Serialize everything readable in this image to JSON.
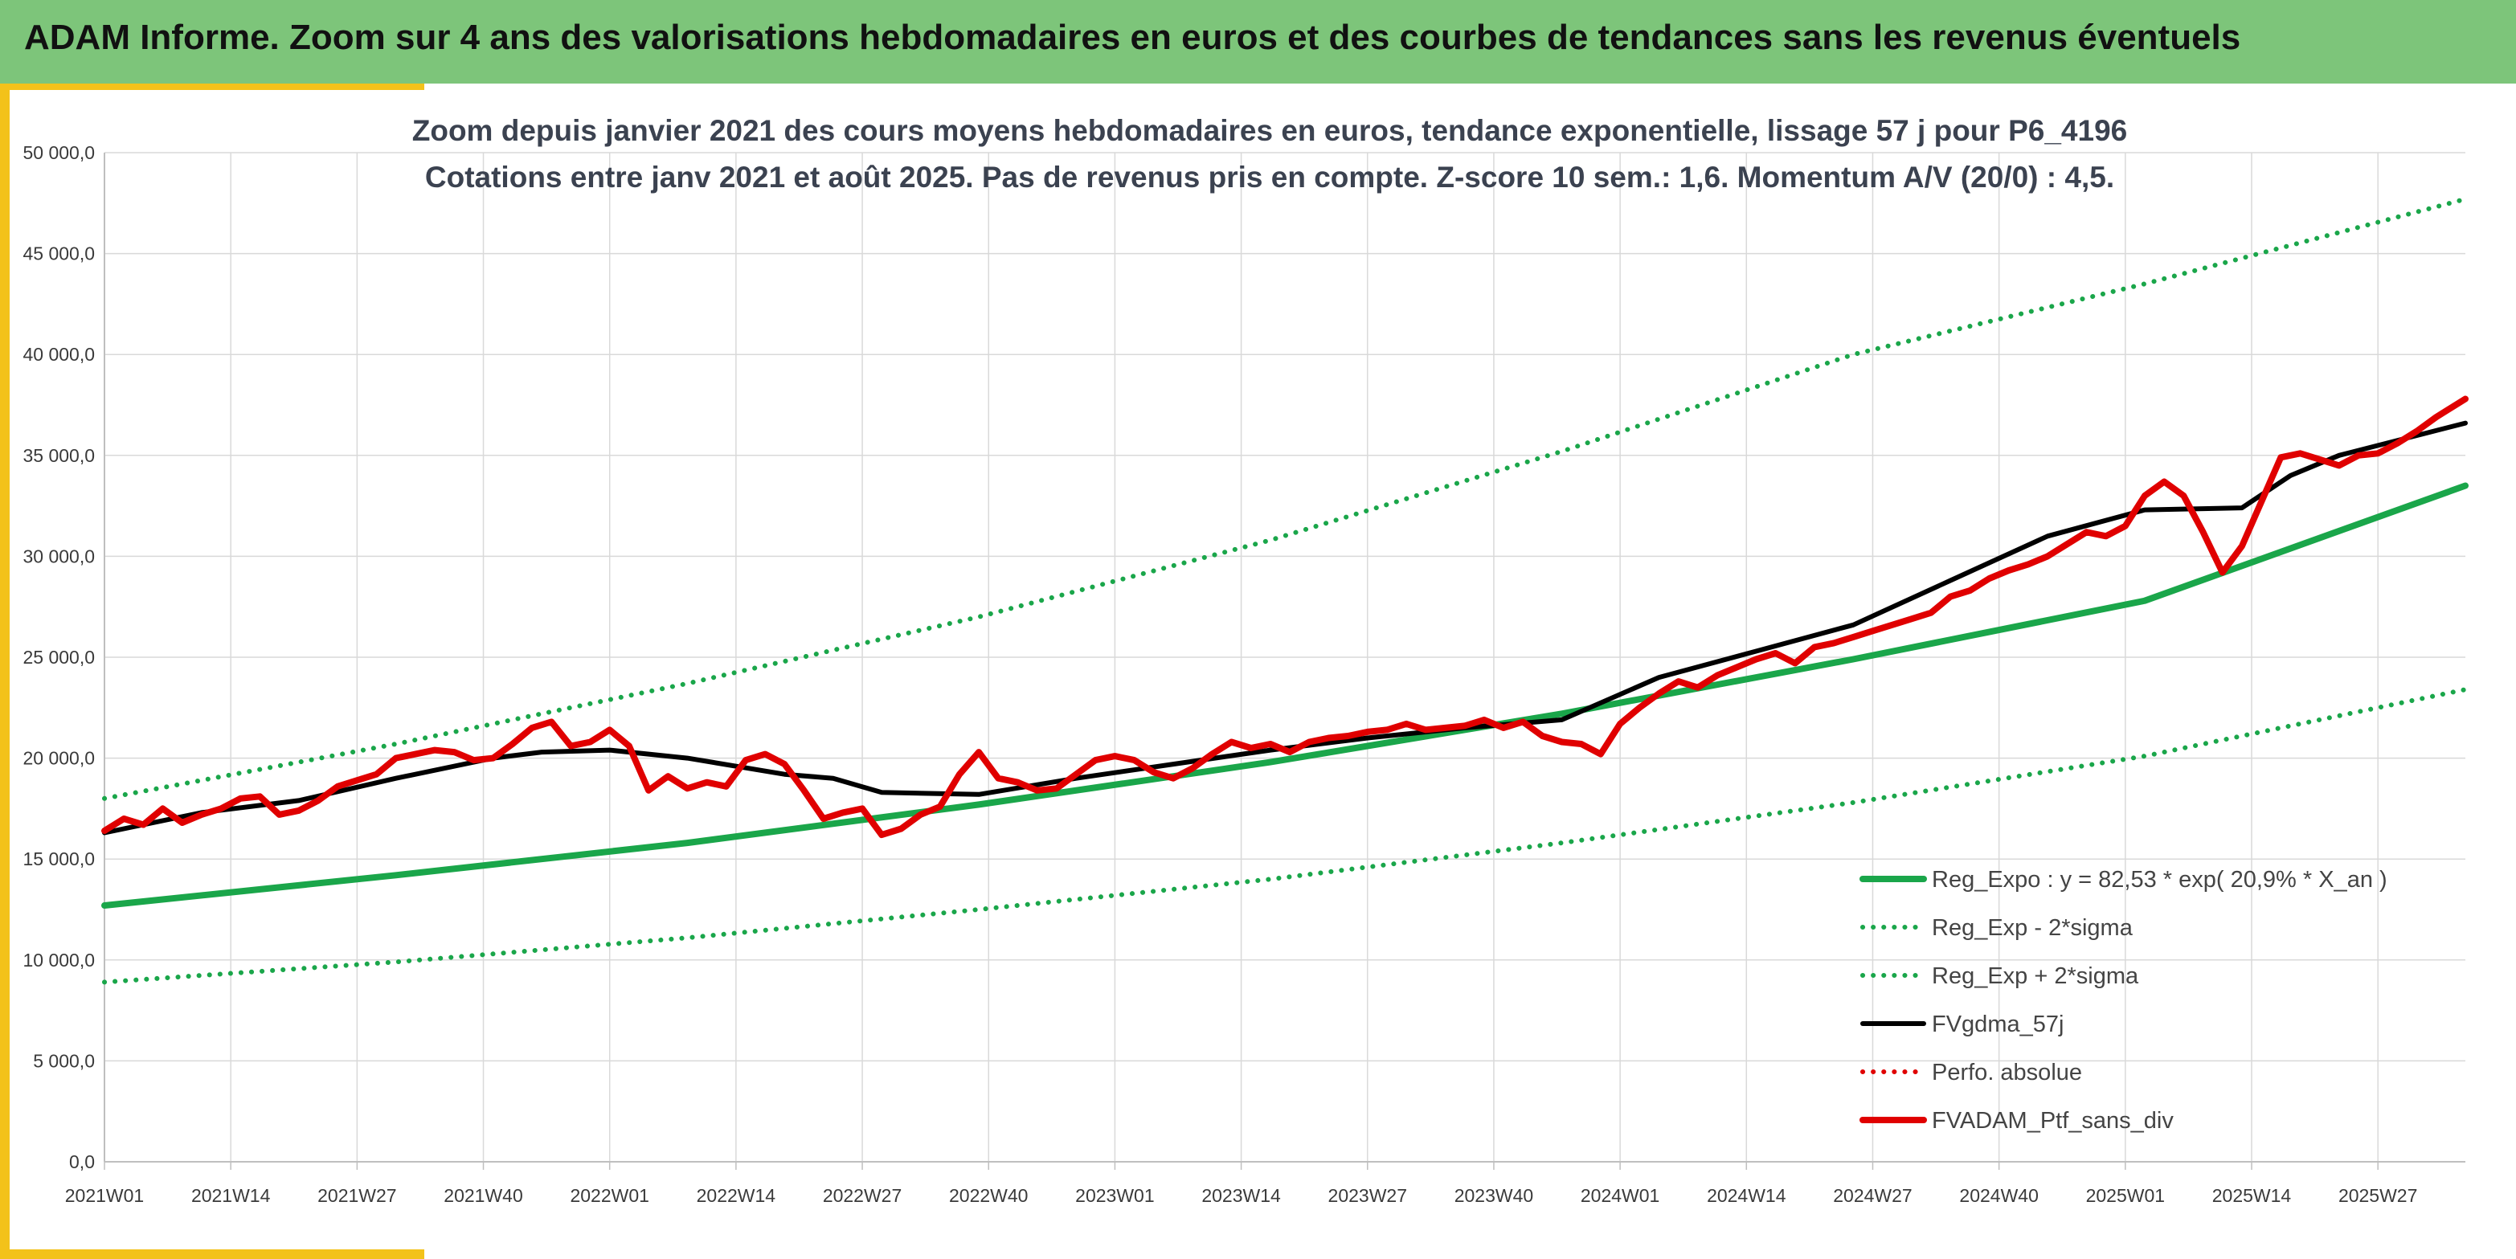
{
  "header": {
    "title": "ADAM Informe. Zoom sur 4 ans des valorisations hebdomadaires en euros et des courbes de tendances sans les revenus éventuels"
  },
  "colors": {
    "header_bg": "#7dc57a",
    "accent": "#f3c21a",
    "reg_expo": "#1aa64a",
    "sigma": "#1aa64a",
    "fvgdma": "#000000",
    "perfo": "#e00000",
    "fvadam": "#e00000",
    "grid": "#d9d9d9"
  },
  "chart_data": {
    "type": "line",
    "title_lines": [
      "Zoom depuis janvier 2021 des cours moyens hebdomadaires en euros, tendance exponentielle, lissage 57 j pour P6_4196",
      "Cotations entre janv 2021 et août 2025. Pas de revenus pris en compte. Z-score 10 sem.: 1,6. Momentum A/V (20/0) : 4,5."
    ],
    "xlabel": "",
    "ylabel": "",
    "x_tick_labels": [
      "2021W01",
      "2021W14",
      "2021W27",
      "2021W40",
      "2022W01",
      "2022W14",
      "2022W27",
      "2022W40",
      "2023W01",
      "2023W14",
      "2023W27",
      "2023W40",
      "2024W01",
      "2024W14",
      "2024W27",
      "2024W40",
      "2025W01",
      "2025W14",
      "2025W27"
    ],
    "y_tick_labels": [
      "0,0",
      "5 000,0",
      "10 000,0",
      "15 000,0",
      "20 000,0",
      "25 000,0",
      "30 000,0",
      "35 000,0",
      "40 000,0",
      "45 000,0",
      "50 000,0"
    ],
    "ylim": [
      0,
      50000
    ],
    "x_range_weeks": [
      0,
      243
    ],
    "grid": true,
    "legend_position": "bottom-right",
    "series": [
      {
        "name": "Reg_Expo : y = 82,53 * exp( 20,9% *  X_an )",
        "style": "solid-thick",
        "color": "#1aa64a",
        "x": [
          0,
          30,
          60,
          90,
          120,
          150,
          180,
          210,
          243
        ],
        "values": [
          12700,
          14200,
          15800,
          17700,
          19800,
          22200,
          24900,
          27800,
          33500
        ]
      },
      {
        "name": "Reg_Exp - 2*sigma",
        "style": "dotted",
        "color": "#1aa64a",
        "x": [
          0,
          30,
          60,
          90,
          120,
          150,
          180,
          210,
          243
        ],
        "values": [
          8900,
          9900,
          11100,
          12500,
          14000,
          15800,
          17800,
          20100,
          23400
        ]
      },
      {
        "name": "Reg_Exp + 2*sigma",
        "style": "dotted",
        "color": "#1aa64a",
        "x": [
          0,
          30,
          60,
          90,
          120,
          150,
          180,
          210,
          243
        ],
        "values": [
          18000,
          20700,
          23700,
          27000,
          30800,
          35200,
          40000,
          43500,
          47700
        ]
      },
      {
        "name": "FVgdma_57j",
        "style": "solid",
        "color": "#000000",
        "x": [
          0,
          10,
          20,
          30,
          40,
          45,
          52,
          60,
          70,
          75,
          80,
          90,
          100,
          110,
          120,
          130,
          140,
          150,
          160,
          170,
          180,
          190,
          200,
          210,
          220,
          225,
          230,
          243
        ],
        "values": [
          16300,
          17300,
          17900,
          19000,
          20000,
          20300,
          20400,
          20000,
          19200,
          19000,
          18300,
          18200,
          19000,
          19700,
          20400,
          21000,
          21500,
          21900,
          24000,
          25300,
          26600,
          28800,
          31000,
          32300,
          32400,
          34000,
          35000,
          36600
        ]
      },
      {
        "name": "Perfo. absolue",
        "style": "dotted",
        "color": "#e00000",
        "x": [],
        "values": []
      },
      {
        "name": "FVADAM_Ptf_sans_div",
        "style": "solid-thick",
        "color": "#e00000",
        "x": [
          0,
          2,
          4,
          6,
          8,
          10,
          12,
          14,
          16,
          18,
          20,
          22,
          24,
          26,
          28,
          30,
          32,
          34,
          36,
          38,
          40,
          42,
          44,
          46,
          48,
          50,
          52,
          54,
          56,
          58,
          60,
          62,
          64,
          66,
          68,
          70,
          72,
          74,
          76,
          78,
          80,
          82,
          84,
          86,
          88,
          90,
          92,
          94,
          96,
          98,
          100,
          102,
          104,
          106,
          108,
          110,
          112,
          114,
          116,
          118,
          120,
          122,
          124,
          126,
          128,
          130,
          132,
          134,
          136,
          138,
          140,
          142,
          144,
          146,
          148,
          150,
          152,
          154,
          156,
          158,
          160,
          162,
          164,
          166,
          168,
          170,
          172,
          174,
          176,
          178,
          180,
          182,
          184,
          186,
          188,
          190,
          192,
          194,
          196,
          198,
          200,
          202,
          204,
          206,
          208,
          210,
          212,
          214,
          216,
          218,
          220,
          222,
          224,
          226,
          228,
          230,
          232,
          234,
          236,
          238,
          240,
          243
        ],
        "values": [
          16400,
          17000,
          16700,
          17500,
          16800,
          17200,
          17500,
          18000,
          18100,
          17200,
          17400,
          17900,
          18600,
          18900,
          19200,
          20000,
          20200,
          20400,
          20300,
          19900,
          20000,
          20700,
          21500,
          21800,
          20600,
          20800,
          21400,
          20600,
          18400,
          19100,
          18500,
          18800,
          18600,
          19900,
          20200,
          19700,
          18400,
          17000,
          17300,
          17500,
          16200,
          16500,
          17200,
          17600,
          19200,
          20300,
          19000,
          18800,
          18400,
          18500,
          19200,
          19900,
          20100,
          19900,
          19300,
          19000,
          19500,
          20200,
          20800,
          20500,
          20700,
          20300,
          20800,
          21000,
          21100,
          21300,
          21400,
          21700,
          21400,
          21500,
          21600,
          21900,
          21500,
          21800,
          21100,
          20800,
          20700,
          20200,
          21700,
          22500,
          23200,
          23800,
          23500,
          24100,
          24500,
          24900,
          25200,
          24700,
          25500,
          25700,
          26000,
          26300,
          26600,
          26900,
          27200,
          28000,
          28300,
          28900,
          29300,
          29600,
          30000,
          30600,
          31200,
          31000,
          31500,
          33000,
          33700,
          33000,
          31200,
          29200,
          30500,
          32700,
          34900,
          35100,
          34800,
          34500,
          35000,
          35100,
          35600,
          36200,
          36900,
          37800
        ]
      }
    ]
  }
}
